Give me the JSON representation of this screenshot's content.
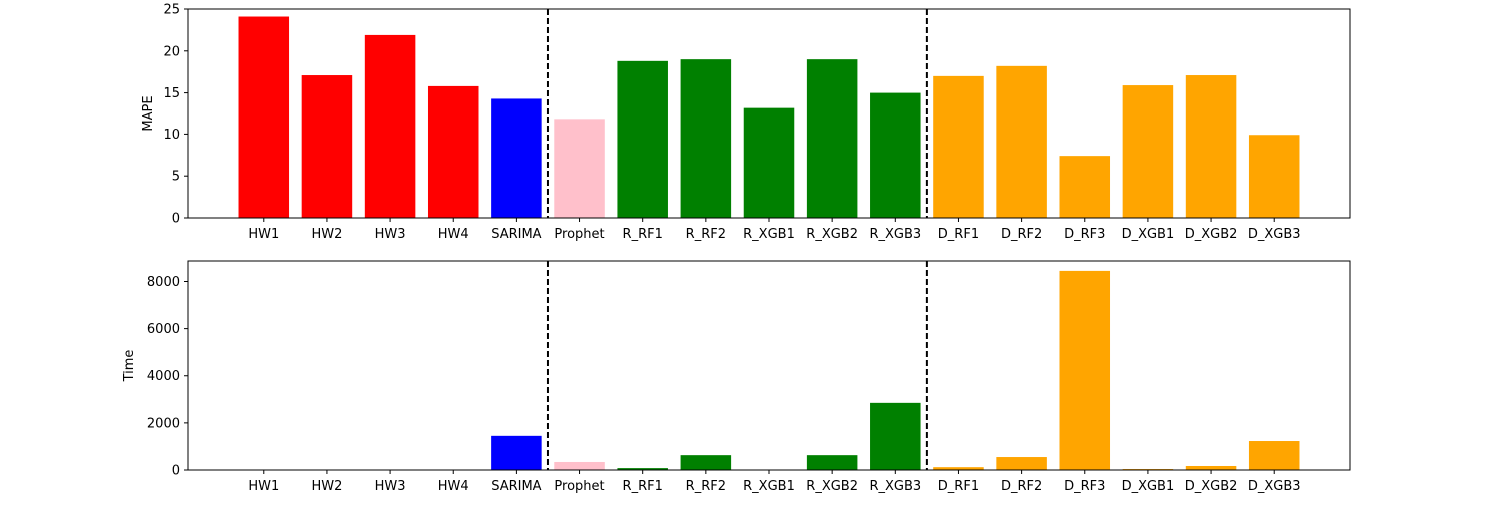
{
  "chart_data": [
    {
      "type": "bar",
      "ylabel": "MAPE",
      "ylim": [
        0,
        25
      ],
      "yticks": [
        0,
        5,
        10,
        15,
        20,
        25
      ],
      "categories": [
        "HW1",
        "HW2",
        "HW3",
        "HW4",
        "SARIMA",
        "Prophet",
        "R_RF1",
        "R_RF2",
        "R_XGB1",
        "R_XGB2",
        "R_XGB3",
        "D_RF1",
        "D_RF2",
        "D_RF3",
        "D_XGB1",
        "D_XGB2",
        "D_XGB3"
      ],
      "values": [
        24.1,
        17.1,
        21.9,
        15.8,
        14.3,
        11.8,
        18.8,
        19.0,
        13.2,
        19.0,
        15.0,
        17.0,
        18.2,
        7.4,
        15.9,
        17.1,
        9.9
      ],
      "colors": [
        "red",
        "red",
        "red",
        "red",
        "blue",
        "pink",
        "green",
        "green",
        "green",
        "green",
        "green",
        "orange",
        "orange",
        "orange",
        "orange",
        "orange",
        "orange"
      ],
      "separators_after": [
        "SARIMA",
        "R_XGB3"
      ],
      "grid": false
    },
    {
      "type": "bar",
      "ylabel": "Time",
      "ylim": [
        0,
        8870
      ],
      "yticks": [
        0,
        2000,
        4000,
        6000,
        8000
      ],
      "categories": [
        "HW1",
        "HW2",
        "HW3",
        "HW4",
        "SARIMA",
        "Prophet",
        "R_RF1",
        "R_RF2",
        "R_XGB1",
        "R_XGB2",
        "R_XGB3",
        "D_RF1",
        "D_RF2",
        "D_RF3",
        "D_XGB1",
        "D_XGB2",
        "D_XGB3"
      ],
      "values": [
        3,
        3,
        3,
        3,
        1450,
        340,
        80,
        630,
        10,
        630,
        2850,
        120,
        550,
        8450,
        40,
        170,
        1230
      ],
      "colors": [
        "red",
        "red",
        "red",
        "red",
        "blue",
        "pink",
        "green",
        "green",
        "green",
        "green",
        "green",
        "orange",
        "orange",
        "orange",
        "orange",
        "orange",
        "orange"
      ],
      "separators_after": [
        "SARIMA",
        "R_XGB3"
      ],
      "grid": false
    }
  ]
}
